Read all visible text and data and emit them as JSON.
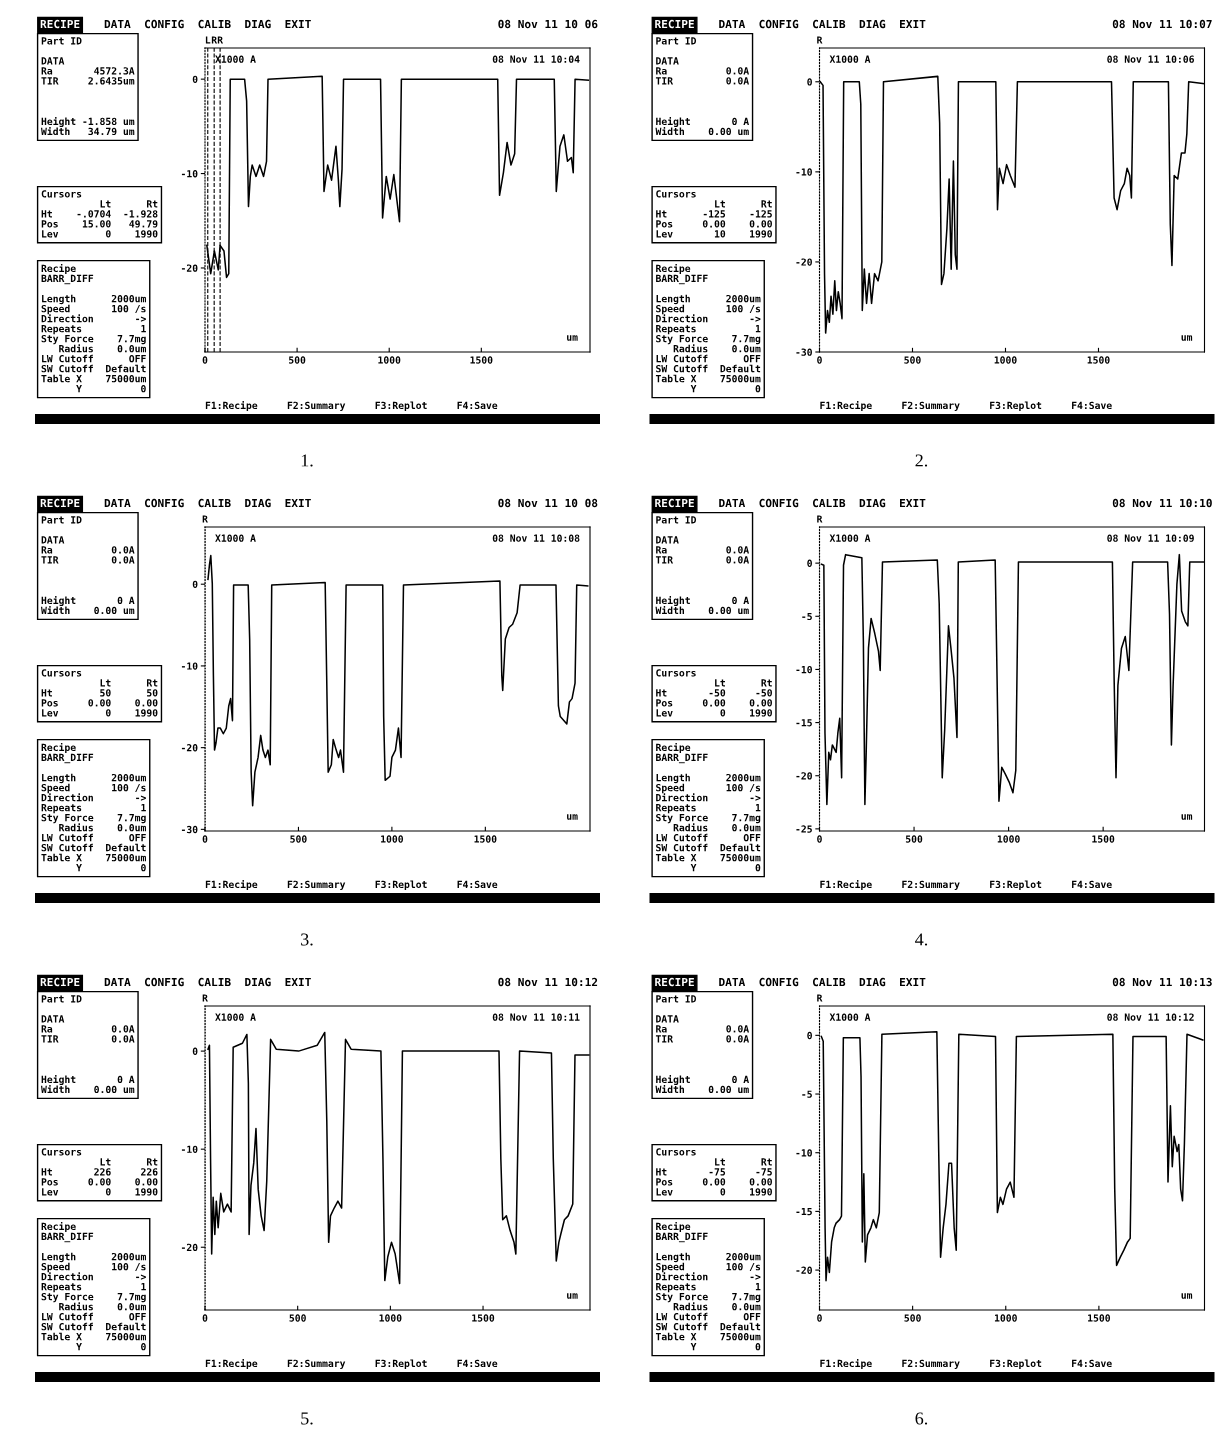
{
  "chart_data": [
    {
      "type": "line",
      "title": "1.",
      "xlim": [
        0,
        2090
      ],
      "ylim": [
        -28.9,
        3.3
      ],
      "xticks": [
        0,
        500,
        1000,
        1500
      ],
      "yticks": [
        0,
        {
          "value": -10,
          "label": "-10"
        },
        {
          "value": -20,
          "label": "-20"
        }
      ],
      "x": [
        10,
        31,
        51,
        72,
        82,
        103,
        117,
        129,
        137,
        215,
        226,
        236,
        246,
        256,
        277,
        297,
        318,
        334,
        342,
        636,
        646,
        666,
        687,
        711,
        724,
        732,
        744,
        752,
        953,
        964,
        984,
        1005,
        1025,
        1046,
        1056,
        1066,
        1589,
        1599,
        1620,
        1640,
        1661,
        1681,
        1691,
        1896,
        1907,
        1927,
        1948,
        1968,
        1989,
        1999,
        2009,
        2081
      ],
      "series": [
        {
          "color": "#000000",
          "values": [
            -17.6,
            -20.6,
            -18.2,
            -20.2,
            -17.6,
            -18.2,
            -21.0,
            -20.6,
            0,
            0,
            -2.3,
            -13.5,
            -10.3,
            -9.1,
            -10.3,
            -9.1,
            -10.3,
            -8.7,
            0,
            0.3,
            -11.9,
            -9.1,
            -10.7,
            -7.1,
            -10.7,
            -13.5,
            -9.5,
            0,
            0,
            -14.7,
            -10.3,
            -12.7,
            -10.1,
            -13.5,
            -15.1,
            0,
            0,
            -12.3,
            -9.9,
            -6.7,
            -9.1,
            -7.9,
            0,
            0,
            -11.9,
            -7.1,
            -5.9,
            -8.7,
            -8.3,
            -9.9,
            0,
            -0.1
          ]
        }
      ],
      "ref_lines": [
        {
          "axis": "x",
          "value": 15,
          "label": "L",
          "line_style": "dashed",
          "color": "#000000"
        },
        {
          "axis": "x",
          "value": 49.79,
          "label": "R",
          "line_style": "dashed",
          "color": "#000000"
        },
        {
          "axis": "x",
          "value": 82,
          "label": "R",
          "line_style": "dashed",
          "color": "#000000"
        }
      ],
      "annotations": [
        "RECIPE",
        "DATA  CONFIG  CALIB  DIAG  EXIT",
        "08 Nov 11 10 06",
        "X1000 A",
        "08 Nov 11 10:04",
        "um",
        "Part ID\n\nDATA\nRa       4572.3A\nTIR     2.6435um\n\n\n\nHeight -1.858 um\nWidth   34.79 um",
        "Cursors\n          Lt      Rt\nHt    -.0704  -1.928\nPos    15.00   49.79\nLev        0    1990",
        "Recipe\nBARR_DIFF\n\nLength      2000um\nSpeed       100 /s\nDirection       ->\nRepeats          1\nSty Force    7.7mg\n   Radius    0.0um\nLW Cutoff      OFF\nSW Cutoff  Default\nTable X    75000um\n      Y          0",
        "F1:Recipe     F2:Summary     F3:Replot     F4:Save"
      ]
    },
    {
      "type": "line",
      "title": "2.",
      "xlim": [
        0,
        2070
      ],
      "ylim": [
        -30,
        3.75
      ],
      "xticks": [
        0,
        500,
        1000,
        1500
      ],
      "yticks": [
        0,
        {
          "value": -10,
          "label": "-10"
        },
        {
          "value": -20,
          "label": "-20"
        },
        {
          "value": -30,
          "label": "-30"
        }
      ],
      "x": [
        4,
        19,
        27,
        33,
        43,
        53,
        62,
        72,
        82,
        91,
        101,
        111,
        121,
        130,
        214,
        222,
        230,
        241,
        253,
        267,
        280,
        296,
        315,
        335,
        344,
        636,
        646,
        656,
        669,
        685,
        697,
        708,
        720,
        730,
        739,
        747,
        948,
        957,
        967,
        987,
        1006,
        1026,
        1051,
        1064,
        1570,
        1584,
        1600,
        1619,
        1639,
        1654,
        1668,
        1677,
        1687,
        1876,
        1886,
        1895,
        1907,
        1926,
        1946,
        1965,
        1975,
        1985,
        2067
      ],
      "series": [
        {
          "color": "#000000",
          "values": [
            0,
            -0.4,
            -21.3,
            -27.9,
            -25.4,
            -26.7,
            -23.8,
            -25.8,
            -22.1,
            -25.4,
            -23.3,
            -24.6,
            -26.3,
            0,
            0,
            -2.5,
            -25.4,
            -20.8,
            -24.6,
            -21.3,
            -24.6,
            -21.3,
            -22.1,
            -20.0,
            0,
            0.6,
            -4.6,
            -22.5,
            -21.3,
            -16.3,
            -10.8,
            -20.8,
            -8.8,
            -19.2,
            -20.8,
            0,
            0,
            -14.2,
            -9.6,
            -11.3,
            -9.2,
            -10.4,
            -11.7,
            0,
            0,
            -12.9,
            -14.2,
            -12.1,
            -11.3,
            -9.6,
            -10.4,
            -12.9,
            0,
            0,
            -15.8,
            -20.4,
            -10.4,
            -10.8,
            -7.9,
            -7.9,
            -5.8,
            0,
            -0.2
          ]
        }
      ],
      "ref_lines": [
        {
          "axis": "x",
          "value": 0,
          "label": "R",
          "line_style": "dotted",
          "color": "#000000"
        }
      ],
      "annotations": [
        "RECIPE",
        "DATA  CONFIG  CALIB  DIAG  EXIT",
        "08 Nov 11 10:07",
        "X1000 A",
        "08 Nov 11 10:06",
        "um",
        "Part ID\n\nDATA\nRa          0.0A\nTIR         0.0A\n\n\n\nHeight       0 A\nWidth    0.00 um",
        "Cursors\n          Lt      Rt\nHt      -125    -125\nPos     0.00    0.00\nLev       10    1990",
        "Recipe\nBARR_DIFF\n\nLength      2000um\nSpeed       100 /s\nDirection       ->\nRepeats          1\nSty Force    7.7mg\n   Radius    0.0um\nLW Cutoff      OFF\nSW Cutoff  Default\nTable X    75000um\n      Y          0",
        "F1:Recipe     F2:Summary     F3:Replot     F4:Save"
      ]
    },
    {
      "type": "line",
      "title": "3.",
      "xlim": [
        0,
        2060
      ],
      "ylim": [
        -30.2,
        7
      ],
      "xticks": [
        0,
        500,
        1000,
        1500
      ],
      "yticks": [
        0,
        {
          "value": -10,
          "label": "-10"
        },
        {
          "value": -20,
          "label": "-20"
        },
        {
          "value": -30,
          "label": "-30"
        }
      ],
      "x": [
        16,
        24,
        31,
        39,
        45,
        51,
        59,
        69,
        82,
        98,
        114,
        127,
        137,
        147,
        153,
        231,
        239,
        247,
        255,
        267,
        284,
        298,
        310,
        323,
        337,
        349,
        357,
        643,
        651,
        659,
        676,
        686,
        702,
        715,
        725,
        741,
        755,
        951,
        956,
        964,
        990,
        1000,
        1019,
        1035,
        1049,
        1062,
        1578,
        1588,
        1593,
        1607,
        1627,
        1646,
        1670,
        1686,
        1878,
        1891,
        1901,
        1921,
        1936,
        1950,
        1964,
        1980,
        1989,
        2048
      ],
      "series": [
        {
          "color": "#000000",
          "values": [
            0.6,
            2.4,
            3.5,
            0.1,
            -11.2,
            -20.3,
            -19.4,
            -17.6,
            -17.6,
            -18.3,
            -17.6,
            -14.9,
            -14.0,
            -16.7,
            -0.1,
            -0.1,
            -6.7,
            -23.0,
            -27.1,
            -23.0,
            -21.2,
            -18.5,
            -20.3,
            -21.2,
            -20.3,
            -22.1,
            -0.1,
            0.2,
            -11.2,
            -23.0,
            -22.1,
            -19.0,
            -20.3,
            -21.2,
            -20.3,
            -23.0,
            -0.1,
            -0.1,
            -16.2,
            -24.0,
            -23.5,
            -21.2,
            -20.3,
            -17.6,
            -21.2,
            -0.1,
            0.4,
            -11.2,
            -13.0,
            -6.7,
            -5.3,
            -4.9,
            -3.5,
            -0.1,
            -0.1,
            -14.9,
            -16.2,
            -16.7,
            -17.1,
            -14.4,
            -14.0,
            -12.1,
            -0.1,
            -0.2
          ]
        }
      ],
      "ref_lines": [
        {
          "axis": "x",
          "value": 0,
          "label": "R",
          "line_style": "dotted",
          "color": "#000000"
        }
      ],
      "annotations": [
        "RECIPE",
        "DATA  CONFIG  CALIB  DIAG  EXIT",
        "08 Nov 11 10 08",
        "X1000 A",
        "08 Nov 11 10:08",
        "um",
        "Part ID\n\nDATA\nRa          0.0A\nTIR         0.0A\n\n\n\nHeight       0 A\nWidth    0.00 um",
        "Cursors\n          Lt      Rt\nHt        50      50\nPos     0.00    0.00\nLev        0    1990",
        "Recipe\nBARR_DIFF\n\nLength      2000um\nSpeed       100 /s\nDirection       ->\nRepeats          1\nSty Force    7.7mg\n   Radius    0.0um\nLW Cutoff      OFF\nSW Cutoff  Default\nTable X    75000um\n      Y          0",
        "F1:Recipe     F2:Summary     F3:Replot     F4:Save"
      ]
    },
    {
      "type": "line",
      "title": "4.",
      "xlim": [
        0,
        2036
      ],
      "ylim": [
        -25.2,
        3.4
      ],
      "xticks": [
        0,
        500,
        1000,
        1500
      ],
      "yticks": [
        0,
        {
          "value": -5,
          "label": "-5"
        },
        {
          "value": -10,
          "label": "-10"
        },
        {
          "value": -15,
          "label": "-15"
        },
        {
          "value": -20,
          "label": "-20"
        },
        {
          "value": -25,
          "label": "-25"
        }
      ],
      "x": [
        10,
        23,
        29,
        39,
        49,
        58,
        68,
        88,
        97,
        107,
        117,
        127,
        138,
        224,
        232,
        240,
        247,
        259,
        273,
        292,
        312,
        321,
        333,
        623,
        633,
        649,
        662,
        682,
        695,
        711,
        727,
        734,
        929,
        939,
        949,
        964,
        984,
        1003,
        1023,
        1038,
        1052,
        1549,
        1558,
        1568,
        1578,
        1597,
        1617,
        1636,
        1656,
        1841,
        1851,
        1861,
        1870,
        1890,
        1903,
        1915,
        1934,
        1948,
        1958,
        2032
      ],
      "series": [
        {
          "color": "#000000",
          "values": [
            -0.1,
            -0.2,
            -16.0,
            -22.7,
            -17.8,
            -18.5,
            -17.1,
            -17.8,
            -16.0,
            -14.6,
            -20.2,
            -0.2,
            0.8,
            0.5,
            -7.3,
            -22.7,
            -17.8,
            -8.0,
            -5.2,
            -6.6,
            -8.3,
            -10.1,
            0.1,
            0.3,
            -3.8,
            -20.2,
            -15.7,
            -5.9,
            -8.0,
            -10.8,
            -16.4,
            0.1,
            0.3,
            -10.8,
            -22.4,
            -19.2,
            -19.9,
            -20.6,
            -21.6,
            -19.5,
            0.1,
            0.1,
            -10.8,
            -20.2,
            -11.5,
            -8.0,
            -6.9,
            -10.1,
            0.1,
            0.1,
            -4.8,
            -17.1,
            -11.5,
            -2.0,
            0.8,
            -4.5,
            -5.5,
            -5.9,
            0.1,
            0.1
          ]
        }
      ],
      "ref_lines": [
        {
          "axis": "x",
          "value": 0,
          "label": "R",
          "line_style": "dotted",
          "color": "#000000"
        }
      ],
      "annotations": [
        "RECIPE",
        "DATA  CONFIG  CALIB  DIAG  EXIT",
        "08 Nov 11 10:10",
        "X1000 A",
        "08 Nov 11 10:09",
        "um",
        "Part ID\n\nDATA\nRa          0.0A\nTIR         0.0A\n\n\n\nHeight       0 A\nWidth    0.00 um",
        "Cursors\n          Lt      Rt\nHt       -50     -50\nPos     0.00    0.00\nLev        0    1990",
        "Recipe\nBARR_DIFF\n\nLength      2000um\nSpeed       100 /s\nDirection       ->\nRepeats          1\nSty Force    7.7mg\n   Radius    0.0um\nLW Cutoff      OFF\nSW Cutoff  Default\nTable X    75000um\n      Y          0",
        "F1:Recipe     F2:Summary     F3:Replot     F4:Save"
      ]
    },
    {
      "type": "line",
      "title": "5.",
      "xlim": [
        0,
        2077
      ],
      "ylim": [
        -26.4,
        4.6
      ],
      "xticks": [
        0,
        500,
        1000,
        1500
      ],
      "yticks": [
        0,
        {
          "value": -10,
          "label": "-10"
        },
        {
          "value": -20,
          "label": "-20"
        }
      ],
      "x": [
        16,
        24,
        30,
        36,
        44,
        53,
        61,
        71,
        85,
        101,
        121,
        141,
        152,
        202,
        226,
        234,
        238,
        248,
        263,
        275,
        287,
        303,
        319,
        333,
        354,
        384,
        505,
        606,
        646,
        657,
        667,
        677,
        697,
        717,
        737,
        758,
        788,
        949,
        960,
        970,
        986,
        1006,
        1026,
        1050,
        1065,
        1586,
        1596,
        1606,
        1626,
        1646,
        1667,
        1677,
        1697,
        1869,
        1879,
        1895,
        1909,
        1919,
        1939,
        1959,
        1984,
        1996,
        2071
      ],
      "series": [
        {
          "color": "#000000",
          "values": [
            0.2,
            0.6,
            -11.0,
            -20.7,
            -14.9,
            -18.7,
            -15.3,
            -18.0,
            -14.5,
            -16.4,
            -15.6,
            -16.4,
            0.4,
            0.8,
            1.7,
            -3.3,
            -18.7,
            -13.7,
            -11.4,
            -7.9,
            -14.1,
            -16.8,
            -18.3,
            -13.3,
            1.2,
            0.2,
            0,
            0.6,
            1.9,
            -7.1,
            -19.5,
            -16.8,
            -16.0,
            -15.3,
            -16.0,
            1.2,
            0.2,
            0,
            -11.0,
            -23.4,
            -21.0,
            -19.5,
            -20.7,
            -23.7,
            0,
            0,
            -11.0,
            -17.2,
            -16.8,
            -18.3,
            -19.5,
            -20.7,
            0,
            -0.2,
            -11.0,
            -21.4,
            -19.5,
            -18.7,
            -17.2,
            -16.8,
            -15.6,
            -0.4,
            -0.4
          ]
        }
      ],
      "ref_lines": [
        {
          "axis": "x",
          "value": 0,
          "label": "R",
          "line_style": "dotted",
          "color": "#000000"
        }
      ],
      "annotations": [
        "RECIPE",
        "DATA  CONFIG  CALIB  DIAG  EXIT",
        "08 Nov 11 10:12",
        "X1000 A",
        "08 Nov 11 10:11",
        "um",
        "Part ID\n\nDATA\nRa          0.0A\nTIR         0.0A\n\n\n\nHeight       0 A\nWidth    0.00 um",
        "Cursors\n          Lt      Rt\nHt       226     226\nPos     0.00    0.00\nLev        0    1990",
        "Recipe\nBARR_DIFF\n\nLength      2000um\nSpeed       100 /s\nDirection       ->\nRepeats          1\nSty Force    7.7mg\n   Radius    0.0um\nLW Cutoff      OFF\nSW Cutoff  Default\nTable X    75000um\n      Y          0",
        "F1:Recipe     F2:Summary     F3:Replot     F4:Save"
      ]
    },
    {
      "type": "line",
      "title": "6.",
      "xlim": [
        0,
        2067
      ],
      "ylim": [
        -23.4,
        2.5
      ],
      "xticks": [
        0,
        500,
        1000,
        1500
      ],
      "yticks": [
        0,
        {
          "value": -5,
          "label": "-5"
        },
        {
          "value": -10,
          "label": "-10"
        },
        {
          "value": -15,
          "label": "-15"
        },
        {
          "value": -20,
          "label": "-20"
        }
      ],
      "x": [
        10,
        20,
        30,
        35,
        43,
        53,
        65,
        79,
        89,
        108,
        118,
        128,
        217,
        223,
        230,
        238,
        246,
        258,
        276,
        289,
        305,
        321,
        335,
        630,
        640,
        650,
        664,
        679,
        695,
        709,
        723,
        734,
        748,
        945,
        955,
        971,
        985,
        1004,
        1024,
        1044,
        1057,
        1575,
        1585,
        1595,
        1615,
        1634,
        1654,
        1668,
        1683,
        1861,
        1871,
        1884,
        1894,
        1904,
        1920,
        1929,
        1939,
        1949,
        1959,
        1973,
        2058
      ],
      "series": [
        {
          "color": "#000000",
          "values": [
            -0.1,
            -0.5,
            -16.4,
            -20.9,
            -18.9,
            -20.2,
            -17.6,
            -16.4,
            -16.0,
            -15.7,
            -15.4,
            -0.2,
            -0.2,
            -3.5,
            -17.6,
            -11.8,
            -19.3,
            -17.0,
            -16.4,
            -15.7,
            -16.4,
            -15.1,
            0.1,
            0.3,
            -9.9,
            -18.9,
            -16.4,
            -14.4,
            -10.9,
            -10.9,
            -16.4,
            -18.3,
            0.1,
            -0.1,
            -15.1,
            -13.8,
            -14.4,
            -13.1,
            -12.5,
            -13.8,
            -0.1,
            0.1,
            -13.1,
            -19.6,
            -18.9,
            -18.3,
            -17.6,
            -17.3,
            -0.1,
            -0.1,
            -12.5,
            -6.0,
            -11.2,
            -8.6,
            -9.9,
            -9.3,
            -13.1,
            -14.1,
            -9.3,
            0.1,
            -0.4
          ]
        }
      ],
      "ref_lines": [
        {
          "axis": "x",
          "value": 0,
          "label": "R",
          "line_style": "dotted",
          "color": "#000000"
        }
      ],
      "annotations": [
        "RECIPE",
        "DATA  CONFIG  CALIB  DIAG  EXIT",
        "08 Nov 11 10:13",
        "X1000 A",
        "08 Nov 11 10:12",
        "um",
        "Part ID\n\nDATA\nRa          0.0A\nTIR         0.0A\n\n\n\nHeight       0 A\nWidth    0.00 um",
        "Cursors\n          Lt      Rt\nHt       -75     -75\nPos     0.00    0.00\nLev        0    1990",
        "Recipe\nBARR_DIFF\n\nLength      2000um\nSpeed       100 /s\nDirection       ->\nRepeats          1\nSty Force    7.7mg\n   Radius    0.0um\nLW Cutoff      OFF\nSW Cutoff  Default\nTable X    75000um\n      Y          0",
        "F1:Recipe     F2:Summary     F3:Replot     F4:Save"
      ]
    }
  ]
}
